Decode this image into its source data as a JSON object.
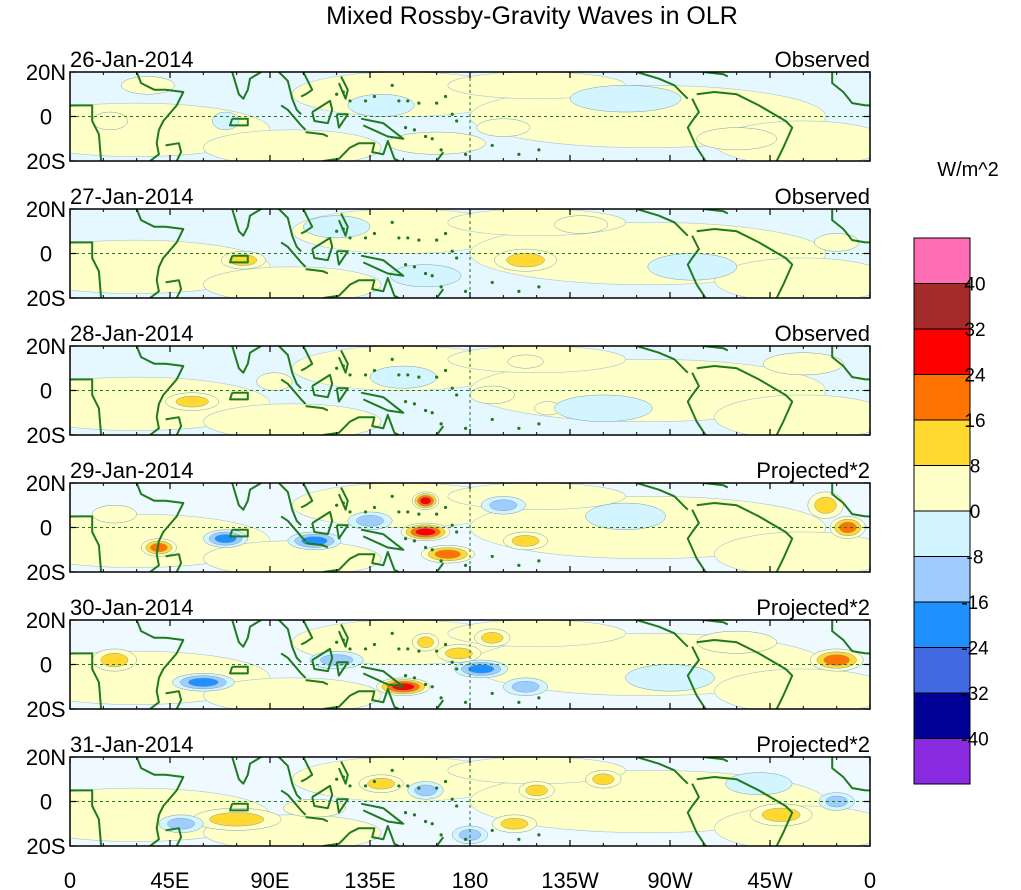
{
  "chart_data": {
    "type": "heatmap",
    "title": "Mixed Rossby-Gravity Waves in OLR",
    "units": "W/m^2",
    "x_ticks": [
      "0",
      "45E",
      "90E",
      "135E",
      "180",
      "135W",
      "90W",
      "45W",
      "0"
    ],
    "x_values": [
      0,
      45,
      90,
      135,
      180,
      225,
      270,
      315,
      360
    ],
    "y_ticks": [
      "20N",
      "0",
      "20S"
    ],
    "y_values": [
      20,
      0,
      -20
    ],
    "xlim": [
      0,
      360
    ],
    "ylim": [
      -20,
      20
    ],
    "colorbar": {
      "labels": [
        "40",
        "32",
        "24",
        "16",
        "8",
        "0",
        "-8",
        "-16",
        "-24",
        "-32",
        "-40"
      ],
      "levels": [
        40,
        32,
        24,
        16,
        8,
        0,
        -8,
        -16,
        -24,
        -32,
        -40
      ],
      "colors": [
        "#ff6eb4",
        "#a52a2a",
        "#ff0000",
        "#ff7300",
        "#ffd92f",
        "#ffffc8",
        "#d2f5ff",
        "#a0cdff",
        "#1e90ff",
        "#4169e1",
        "#000096",
        "#8a2be2"
      ]
    },
    "panels": [
      {
        "date": "26-Jan-2014",
        "label": "Observed",
        "scale": 0.45,
        "blobs": [
          [
            165,
            -12,
            22,
            5,
            8
          ],
          [
            195,
            -5,
            12,
            4,
            7
          ],
          [
            18,
            -2,
            8,
            4,
            7
          ],
          [
            70,
            -2,
            6,
            4,
            -6
          ],
          [
            140,
            5,
            15,
            5,
            -5
          ],
          [
            250,
            8,
            25,
            6,
            -5
          ],
          [
            300,
            -10,
            18,
            5,
            5
          ],
          [
            35,
            14,
            12,
            4,
            4
          ]
        ]
      },
      {
        "date": "27-Jan-2014",
        "label": "Observed",
        "scale": 0.45,
        "blobs": [
          [
            78,
            -3,
            10,
            4,
            9
          ],
          [
            205,
            -3,
            14,
            5,
            9
          ],
          [
            230,
            13,
            12,
            4,
            5
          ],
          [
            120,
            12,
            15,
            5,
            -6
          ],
          [
            160,
            -10,
            16,
            5,
            -6
          ],
          [
            280,
            -6,
            20,
            6,
            -5
          ],
          [
            345,
            5,
            10,
            4,
            5
          ]
        ]
      },
      {
        "date": "28-Jan-2014",
        "label": "Observed",
        "scale": 0.45,
        "blobs": [
          [
            55,
            -5,
            12,
            4,
            9
          ],
          [
            92,
            4,
            8,
            4,
            7
          ],
          [
            190,
            -2,
            10,
            4,
            8
          ],
          [
            205,
            13,
            8,
            3,
            8
          ],
          [
            215,
            -8,
            6,
            3,
            8
          ],
          [
            150,
            6,
            15,
            5,
            -6
          ],
          [
            240,
            -8,
            22,
            6,
            -5
          ],
          [
            330,
            12,
            18,
            5,
            4
          ]
        ]
      },
      {
        "date": "29-Jan-2014",
        "label": "Projected*2",
        "scale": 1.0,
        "blobs": [
          [
            160,
            -2,
            11,
            4,
            32
          ],
          [
            170,
            -12,
            12,
            4,
            24
          ],
          [
            160,
            12,
            6,
            4,
            25
          ],
          [
            40,
            -9,
            8,
            4,
            22
          ],
          [
            350,
            0,
            8,
            5,
            18
          ],
          [
            340,
            10,
            8,
            6,
            12
          ],
          [
            70,
            -5,
            10,
            4,
            -20
          ],
          [
            110,
            -6,
            12,
            4,
            -18
          ],
          [
            135,
            3,
            10,
            4,
            -14
          ],
          [
            195,
            10,
            10,
            4,
            -12
          ],
          [
            250,
            5,
            18,
            6,
            -8
          ],
          [
            20,
            6,
            10,
            4,
            8
          ],
          [
            205,
            -6,
            10,
            4,
            10
          ]
        ]
      },
      {
        "date": "30-Jan-2014",
        "label": "Projected*2",
        "scale": 1.0,
        "blobs": [
          [
            150,
            -10,
            12,
            4,
            28
          ],
          [
            175,
            5,
            10,
            4,
            12
          ],
          [
            190,
            12,
            8,
            4,
            10
          ],
          [
            160,
            10,
            6,
            4,
            14
          ],
          [
            345,
            2,
            12,
            5,
            18
          ],
          [
            20,
            2,
            10,
            5,
            10
          ],
          [
            60,
            -8,
            14,
            4,
            -20
          ],
          [
            120,
            2,
            12,
            4,
            -16
          ],
          [
            185,
            -2,
            12,
            4,
            -24
          ],
          [
            205,
            -10,
            10,
            4,
            -14
          ],
          [
            270,
            -6,
            20,
            6,
            -8
          ],
          [
            300,
            10,
            18,
            5,
            6
          ]
        ]
      },
      {
        "date": "31-Jan-2014",
        "label": "Projected*2",
        "scale": 1.0,
        "blobs": [
          [
            75,
            -8,
            20,
            5,
            12
          ],
          [
            140,
            8,
            10,
            4,
            12
          ],
          [
            200,
            -10,
            10,
            4,
            10
          ],
          [
            210,
            5,
            8,
            4,
            12
          ],
          [
            240,
            10,
            8,
            4,
            10
          ],
          [
            320,
            -6,
            14,
            5,
            10
          ],
          [
            50,
            -10,
            10,
            4,
            -14
          ],
          [
            160,
            5,
            8,
            4,
            -16
          ],
          [
            180,
            -15,
            8,
            4,
            -16
          ],
          [
            310,
            8,
            15,
            5,
            -8
          ],
          [
            345,
            0,
            8,
            4,
            -10
          ],
          [
            110,
            -3,
            14,
            4,
            6
          ]
        ]
      }
    ]
  }
}
